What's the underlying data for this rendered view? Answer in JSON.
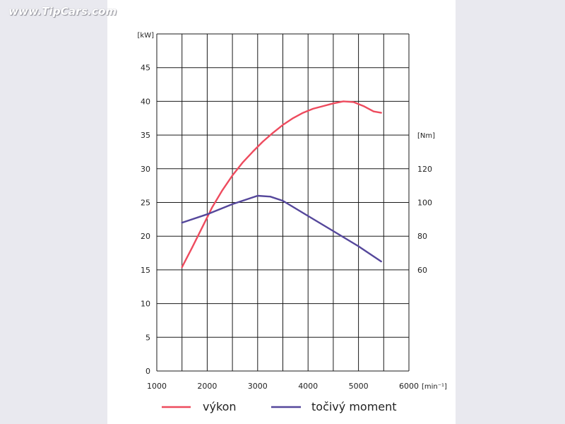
{
  "watermark": "www.TipCars.com",
  "chart_data": {
    "type": "line",
    "x_unit": "[min⁻¹]",
    "y_left_unit": "[kW]",
    "y_right_unit": "[Nm]",
    "xlim": [
      1000,
      6000
    ],
    "ylim_left": [
      0,
      50
    ],
    "ylim_right": [
      0,
      200
    ],
    "x_ticks": [
      "1000",
      "2000",
      "3000",
      "4000",
      "5000",
      "6000"
    ],
    "y_left_ticks": [
      "0",
      "5",
      "10",
      "15",
      "20",
      "25",
      "30",
      "35",
      "40",
      "45"
    ],
    "y_right_ticks": [
      "60",
      "80",
      "100",
      "120"
    ],
    "grid": true,
    "legend_position": "bottom",
    "series": [
      {
        "name": "výkon",
        "axis": "left",
        "color": "#ee4b5e",
        "x": [
          1500,
          1700,
          1900,
          2100,
          2300,
          2500,
          2700,
          2900,
          3100,
          3300,
          3500,
          3700,
          3900,
          4100,
          4300,
          4500,
          4700,
          4900,
          5100,
          5300,
          5450
        ],
        "y": [
          15.4,
          18.3,
          21.3,
          24.3,
          26.8,
          29.0,
          30.9,
          32.5,
          34.0,
          35.3,
          36.5,
          37.5,
          38.3,
          38.9,
          39.3,
          39.7,
          40.0,
          39.9,
          39.3,
          38.5,
          38.3
        ]
      },
      {
        "name": "točivý moment",
        "axis": "right",
        "color": "#55479b",
        "x": [
          1500,
          2000,
          2500,
          3000,
          3250,
          3500,
          4000,
          4500,
          5000,
          5450
        ],
        "y": [
          88,
          93,
          99,
          104,
          103.5,
          101,
          92,
          83,
          74,
          65
        ]
      }
    ]
  }
}
